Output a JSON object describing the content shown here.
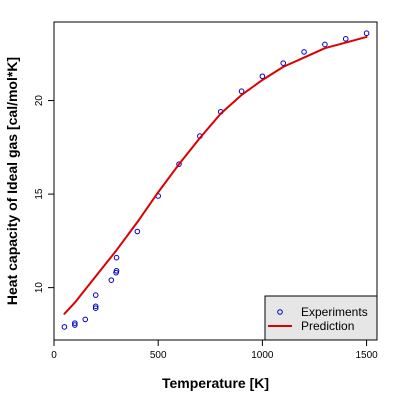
{
  "chart_data": {
    "type": "scatter",
    "xlabel": "Temperature [K]",
    "ylabel": "Heat capacity of Ideal gas [cal/mol*K]",
    "xlim": [
      0,
      1550
    ],
    "ylim": [
      7.2,
      24.2
    ],
    "x_ticks": [
      0,
      500,
      1000,
      1500
    ],
    "y_ticks": [
      10,
      15,
      20
    ],
    "x_tick_labels": [
      "0",
      "500",
      "1000",
      "1500"
    ],
    "y_tick_labels": [
      "10",
      "15",
      "20"
    ],
    "grid": false,
    "legend_position": "bottom-right",
    "series": [
      {
        "name": "Experiments",
        "kind": "points",
        "color": "#0000cc",
        "points": [
          {
            "x": 50,
            "y": 7.9
          },
          {
            "x": 100,
            "y": 8.0
          },
          {
            "x": 100,
            "y": 8.1
          },
          {
            "x": 150,
            "y": 8.3
          },
          {
            "x": 200,
            "y": 8.9
          },
          {
            "x": 200,
            "y": 9.0
          },
          {
            "x": 200,
            "y": 9.6
          },
          {
            "x": 275,
            "y": 10.4
          },
          {
            "x": 298,
            "y": 10.8
          },
          {
            "x": 300,
            "y": 10.9
          },
          {
            "x": 300,
            "y": 11.6
          },
          {
            "x": 400,
            "y": 13.0
          },
          {
            "x": 500,
            "y": 14.9
          },
          {
            "x": 600,
            "y": 16.6
          },
          {
            "x": 700,
            "y": 18.1
          },
          {
            "x": 800,
            "y": 19.4
          },
          {
            "x": 900,
            "y": 20.5
          },
          {
            "x": 1000,
            "y": 21.3
          },
          {
            "x": 1100,
            "y": 22.0
          },
          {
            "x": 1200,
            "y": 22.6
          },
          {
            "x": 1300,
            "y": 23.0
          },
          {
            "x": 1400,
            "y": 23.3
          },
          {
            "x": 1500,
            "y": 23.6
          }
        ]
      },
      {
        "name": "Prediction",
        "kind": "line",
        "color": "#dd0000",
        "points": [
          {
            "x": 50,
            "y": 8.6
          },
          {
            "x": 100,
            "y": 9.2
          },
          {
            "x": 150,
            "y": 9.9
          },
          {
            "x": 200,
            "y": 10.6
          },
          {
            "x": 300,
            "y": 12.0
          },
          {
            "x": 400,
            "y": 13.5
          },
          {
            "x": 500,
            "y": 15.1
          },
          {
            "x": 600,
            "y": 16.6
          },
          {
            "x": 700,
            "y": 18.0
          },
          {
            "x": 800,
            "y": 19.3
          },
          {
            "x": 900,
            "y": 20.3
          },
          {
            "x": 1000,
            "y": 21.1
          },
          {
            "x": 1100,
            "y": 21.8
          },
          {
            "x": 1200,
            "y": 22.3
          },
          {
            "x": 1300,
            "y": 22.8
          },
          {
            "x": 1400,
            "y": 23.1
          },
          {
            "x": 1500,
            "y": 23.4
          }
        ]
      }
    ],
    "legend": {
      "items": [
        {
          "label": "Experiments",
          "symbol": "circle",
          "color": "#0000cc"
        },
        {
          "label": "Prediction",
          "symbol": "line",
          "color": "#dd0000"
        }
      ],
      "background": "#e6e6e6"
    }
  }
}
